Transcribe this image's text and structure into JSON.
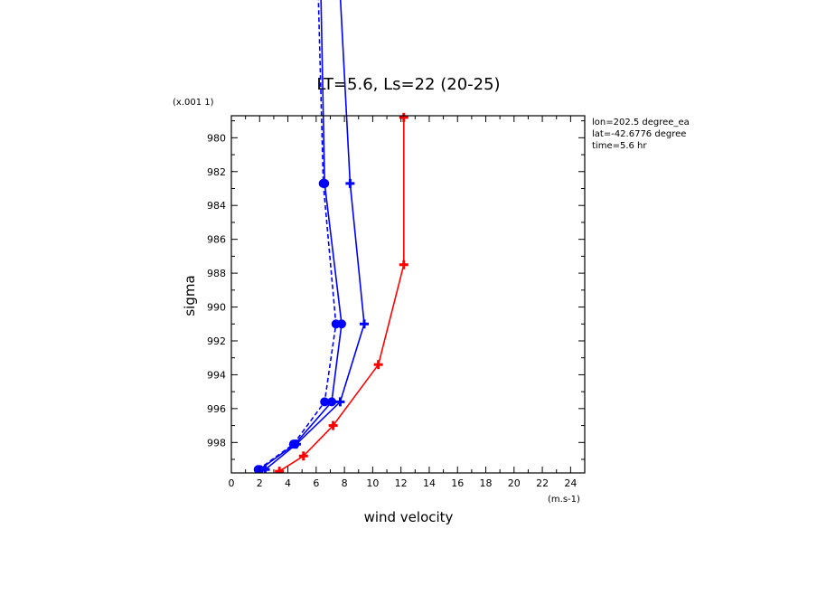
{
  "chart_data": {
    "type": "line",
    "title": "LT=5.6, Ls=22 (20-25)",
    "xlabel": "wind velocity",
    "ylabel": "sigma",
    "x_unit_label": "(m.s-1)",
    "y_scale_label": "(x.001 1)",
    "xlim": [
      0,
      25
    ],
    "ylim": [
      999.8,
      978.7
    ],
    "x_ticks": [
      0,
      2,
      4,
      6,
      8,
      10,
      12,
      14,
      16,
      18,
      20,
      22,
      24
    ],
    "y_ticks": [
      980,
      982,
      984,
      986,
      988,
      990,
      992,
      994,
      996,
      998
    ],
    "grid": false,
    "info": [
      "lon=202.5 degree_ea",
      "lat=-42.6776 degree",
      "time=5.6 hr"
    ],
    "series": [
      {
        "color": "#ff0000",
        "dash": "solid",
        "marker": "plus",
        "points": [
          [
            3.4,
            999.7
          ],
          [
            5.1,
            998.8
          ],
          [
            7.2,
            997.0
          ],
          [
            10.4,
            993.4
          ],
          [
            12.2,
            987.5
          ],
          [
            12.2,
            978.8
          ]
        ]
      },
      {
        "color": "#0000ff",
        "dash": "solid",
        "marker": "plus",
        "points": [
          [
            2.4,
            999.6
          ],
          [
            4.6,
            998.1
          ],
          [
            7.7,
            995.6
          ],
          [
            9.4,
            991.0
          ],
          [
            8.4,
            982.7
          ],
          [
            7.6,
            970.0
          ]
        ]
      },
      {
        "color": "#0000ff",
        "dash": "solid",
        "marker": "circle",
        "points": [
          [
            2.0,
            999.6
          ],
          [
            4.5,
            998.1
          ],
          [
            7.1,
            995.6
          ],
          [
            7.8,
            991.0
          ],
          [
            6.6,
            982.7
          ],
          [
            6.3,
            970.0
          ]
        ]
      },
      {
        "color": "#0000ff",
        "dash": "dashed",
        "marker": "circle",
        "points": [
          [
            1.9,
            999.6
          ],
          [
            4.4,
            998.1
          ],
          [
            6.6,
            995.6
          ],
          [
            7.4,
            991.0
          ],
          [
            6.5,
            982.7
          ],
          [
            6.1,
            970.0
          ]
        ]
      }
    ]
  }
}
